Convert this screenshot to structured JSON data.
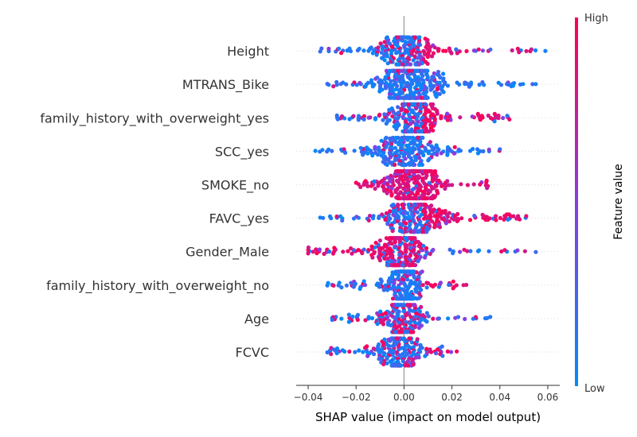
{
  "chart_data": {
    "type": "scatter",
    "subtype": "shap-beeswarm",
    "title": "",
    "xlabel": "SHAP value (impact on model output)",
    "ylabel": "",
    "xlim": [
      -0.045,
      0.065
    ],
    "x_ticks": [
      -0.04,
      -0.02,
      0.0,
      0.02,
      0.04,
      0.06
    ],
    "x_tick_labels": [
      "−0.04",
      "−0.02",
      "0.00",
      "0.02",
      "0.04",
      "0.06"
    ],
    "grid": "dotted horizontal per feature",
    "zero_line": true,
    "colors": {
      "low": "#008bfb",
      "high": "#ff0052"
    },
    "colorbar": {
      "label": "Feature value",
      "high_label": "High",
      "low_label": "Low",
      "placement": "right"
    },
    "features": [
      {
        "name": "Height",
        "min": -0.035,
        "max": 0.059,
        "core": [
          -0.02,
          0.022
        ],
        "lowFrac": 0.45,
        "trend": 1,
        "density": 1.0
      },
      {
        "name": "MTRANS_Bike",
        "min": -0.032,
        "max": 0.055,
        "core": [
          -0.018,
          0.022
        ],
        "lowFrac": 0.95,
        "trend": 0,
        "density": 1.5
      },
      {
        "name": "family_history_with_overweight_yes",
        "min": -0.028,
        "max": 0.044,
        "core": [
          -0.012,
          0.022
        ],
        "lowFrac": 0.25,
        "trend": 1,
        "density": 1.2
      },
      {
        "name": "SCC_yes",
        "min": -0.037,
        "max": 0.04,
        "core": [
          -0.02,
          0.022
        ],
        "lowFrac": 0.88,
        "trend": 0,
        "density": 1.0
      },
      {
        "name": "SMOKE_no",
        "min": -0.02,
        "max": 0.035,
        "core": [
          -0.012,
          0.02
        ],
        "lowFrac": 0.05,
        "trend": 0,
        "density": 1.4
      },
      {
        "name": "FAVC_yes",
        "min": -0.035,
        "max": 0.051,
        "core": [
          -0.015,
          0.025
        ],
        "lowFrac": 0.35,
        "trend": 1,
        "density": 1.2
      },
      {
        "name": "Gender_Male",
        "min": -0.04,
        "max": 0.055,
        "core": [
          -0.015,
          0.013
        ],
        "lowFrac": 0.5,
        "trend": -1,
        "density": 1.2
      },
      {
        "name": "family_history_with_overweight_no",
        "min": -0.032,
        "max": 0.026,
        "core": [
          -0.012,
          0.013
        ],
        "lowFrac": 0.6,
        "trend": 1,
        "density": 0.9
      },
      {
        "name": "Age",
        "min": -0.03,
        "max": 0.036,
        "core": [
          -0.015,
          0.015
        ],
        "lowFrac": 0.5,
        "trend": 0,
        "density": 0.9
      },
      {
        "name": "FCVC",
        "min": -0.032,
        "max": 0.022,
        "core": [
          -0.02,
          0.015
        ],
        "lowFrac": 0.5,
        "trend": 1,
        "density": 0.9
      }
    ]
  }
}
